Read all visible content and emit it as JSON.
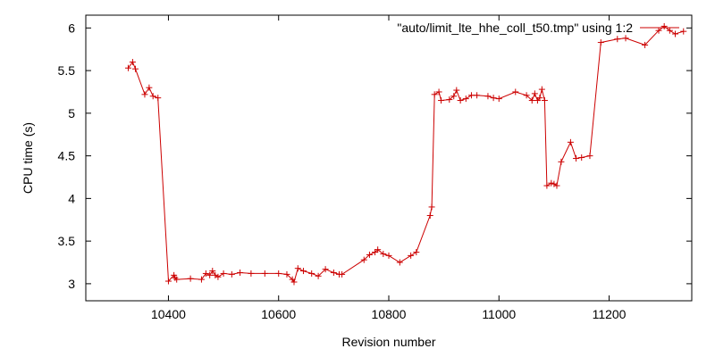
{
  "chart_data": {
    "type": "line",
    "title": "",
    "xlabel": "Revision number",
    "ylabel": "CPU time (s)",
    "xlim": [
      10250,
      11350
    ],
    "ylim": [
      2.8,
      6.15
    ],
    "x_ticks": [
      10400,
      10600,
      10800,
      11000,
      11200
    ],
    "y_ticks": [
      3,
      3.5,
      4,
      4.5,
      5,
      5.5,
      6
    ],
    "x_tick_labels": [
      "10400",
      "10600",
      "10800",
      "11000",
      "11200"
    ],
    "y_tick_labels": [
      "3",
      "3.5",
      "4",
      "4.5",
      "5",
      "5.5",
      "6"
    ],
    "legend": {
      "position": "top-right",
      "marker_color": "#cc0000"
    },
    "series": [
      {
        "name": "\"auto/limit_lte_hhe_coll_t50.tmp\" using 1:2",
        "color": "#cc0000",
        "marker": "plus",
        "x": [
          10327,
          10335,
          10340,
          10357,
          10365,
          10372,
          10381,
          10400,
          10410,
          10412,
          10415,
          10440,
          10460,
          10468,
          10475,
          10480,
          10485,
          10490,
          10500,
          10515,
          10530,
          10550,
          10575,
          10600,
          10615,
          10625,
          10628,
          10635,
          10645,
          10660,
          10672,
          10685,
          10700,
          10710,
          10715,
          10755,
          10765,
          10775,
          10780,
          10790,
          10800,
          10820,
          10840,
          10850,
          10875,
          10878,
          10883,
          10891,
          10895,
          10910,
          10918,
          10923,
          10930,
          10940,
          10950,
          10960,
          10980,
          10990,
          11000,
          11030,
          11050,
          11060,
          11065,
          11070,
          11074,
          11078,
          11083,
          11087,
          11095,
          11100,
          11105,
          11113,
          11130,
          11140,
          11150,
          11165,
          11185,
          11215,
          11230,
          11265,
          11290,
          11300,
          11310,
          11320,
          11335
        ],
        "y": [
          5.53,
          5.6,
          5.52,
          5.22,
          5.3,
          5.2,
          5.18,
          3.03,
          3.1,
          3.07,
          3.05,
          3.06,
          3.05,
          3.12,
          3.1,
          3.15,
          3.1,
          3.08,
          3.12,
          3.11,
          3.13,
          3.12,
          3.12,
          3.12,
          3.11,
          3.05,
          3.02,
          3.18,
          3.15,
          3.12,
          3.09,
          3.17,
          3.13,
          3.11,
          3.11,
          3.28,
          3.34,
          3.37,
          3.4,
          3.35,
          3.33,
          3.25,
          3.33,
          3.37,
          3.8,
          3.9,
          5.22,
          5.25,
          5.15,
          5.16,
          5.2,
          5.27,
          5.15,
          5.17,
          5.21,
          5.21,
          5.2,
          5.18,
          5.17,
          5.25,
          5.21,
          5.15,
          5.23,
          5.15,
          5.18,
          5.28,
          5.15,
          4.15,
          4.18,
          4.17,
          4.15,
          4.43,
          4.66,
          4.47,
          4.48,
          4.5,
          5.83,
          5.87,
          5.88,
          5.8,
          5.97,
          6.02,
          5.97,
          5.93,
          5.96
        ]
      }
    ]
  }
}
